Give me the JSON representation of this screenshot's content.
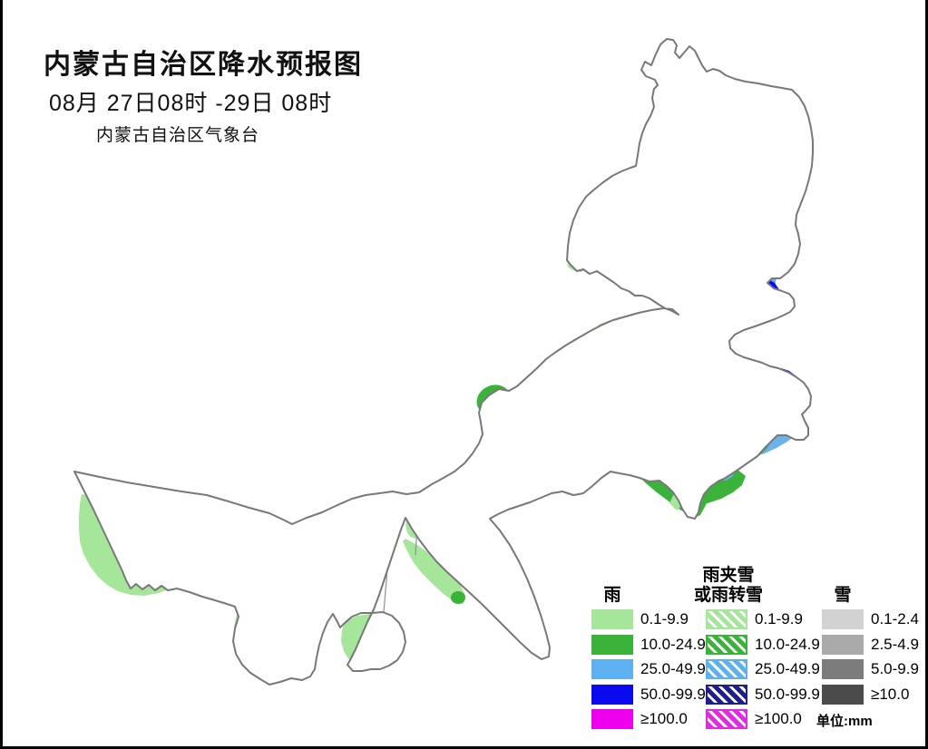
{
  "header": {
    "title": "内蒙古自治区降水预报图",
    "date_line": "08月 27日08时 -29日 08时",
    "agency": "内蒙古自治区气象台"
  },
  "legend": {
    "unit_label": "单位:mm",
    "columns": [
      {
        "id": "rain",
        "header_lines": [
          "雨"
        ],
        "items": [
          {
            "label": "0.1-9.9",
            "color": "#a6e69b",
            "hatched": false
          },
          {
            "label": "10.0-24.9",
            "color": "#3bb33b",
            "hatched": false
          },
          {
            "label": "25.0-49.9",
            "color": "#5db1f0",
            "hatched": false
          },
          {
            "label": "50.0-99.9",
            "color": "#0a0af0",
            "hatched": false
          },
          {
            "label": "≥100.0",
            "color": "#ee00ee",
            "hatched": false
          }
        ]
      },
      {
        "id": "sleet",
        "header_lines": [
          "雨夹雪",
          "或雨转雪"
        ],
        "items": [
          {
            "label": "0.1-9.9",
            "color": "#a6e69b",
            "hatched": true
          },
          {
            "label": "10.0-24.9",
            "color": "#3bb33b",
            "hatched": true
          },
          {
            "label": "25.0-49.9",
            "color": "#5db1f0",
            "hatched": true
          },
          {
            "label": "50.0-99.9",
            "color": "#1e1e8e",
            "hatched": true
          },
          {
            "label": "≥100.0",
            "color": "#e02ce0",
            "hatched": true
          }
        ]
      },
      {
        "id": "snow",
        "header_lines": [
          "雪"
        ],
        "items": [
          {
            "label": "0.1-2.4",
            "color": "#d2d2d2",
            "hatched": false
          },
          {
            "label": "2.5-4.9",
            "color": "#aaaaaa",
            "hatched": false
          },
          {
            "label": "5.0-9.9",
            "color": "#7b7b7b",
            "hatched": false
          },
          {
            "label": "≥10.0",
            "color": "#4b4b4b",
            "hatched": false
          }
        ]
      }
    ]
  },
  "map": {
    "colors": {
      "white": "#ffffff",
      "light_green": "#a6e69b",
      "green": "#3bb33b",
      "light_blue": "#6cb3ec",
      "blue": "#0a0af0",
      "outline": "#787878",
      "inner": "#909090"
    }
  }
}
